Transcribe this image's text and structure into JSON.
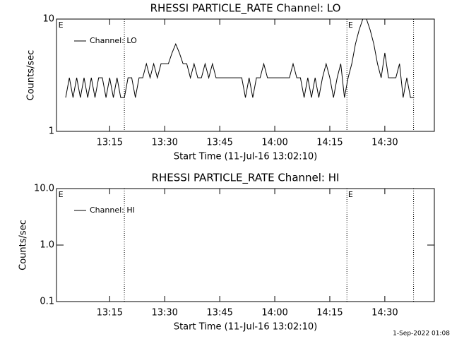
{
  "chart_data": [
    {
      "type": "line",
      "title": "RHESSI PARTICLE_RATE Channel: LO",
      "xlabel": "Start Time (11-Jul-16 13:02:10)",
      "ylabel": "Counts/sec",
      "log_y": true,
      "ylim": [
        1,
        10
      ],
      "yticks": [
        1,
        10
      ],
      "xlim": [
        "13:00:30",
        "14:43:30"
      ],
      "xticks": [
        "13:15",
        "13:30",
        "13:45",
        "14:00",
        "14:15",
        "14:30"
      ],
      "markers": [
        "13:19",
        "14:19:40",
        "14:37:50"
      ],
      "annotations": [
        {
          "text": "E",
          "x": "13:01"
        },
        {
          "text": "E",
          "x": "14:20"
        }
      ],
      "series": [
        {
          "name": "Channel: LO",
          "color": "#000000",
          "x": [
            "13:03",
            "13:04",
            "13:05",
            "13:06",
            "13:07",
            "13:08",
            "13:09",
            "13:10",
            "13:11",
            "13:12",
            "13:13",
            "13:14",
            "13:15",
            "13:16",
            "13:17",
            "13:18",
            "13:19",
            "13:20",
            "13:21",
            "13:22",
            "13:23",
            "13:24",
            "13:25",
            "13:26",
            "13:27",
            "13:28",
            "13:29",
            "13:30",
            "13:31",
            "13:32",
            "13:33",
            "13:34",
            "13:35",
            "13:36",
            "13:37",
            "13:38",
            "13:39",
            "13:40",
            "13:41",
            "13:42",
            "13:43",
            "13:44",
            "13:45",
            "13:46",
            "13:47",
            "13:48",
            "13:49",
            "13:50",
            "13:51",
            "13:52",
            "13:53",
            "13:54",
            "13:55",
            "13:56",
            "13:57",
            "13:58",
            "13:59",
            "14:00",
            "14:01",
            "14:02",
            "14:03",
            "14:04",
            "14:05",
            "14:06",
            "14:07",
            "14:08",
            "14:09",
            "14:10",
            "14:11",
            "14:12",
            "14:13",
            "14:14",
            "14:15",
            "14:16",
            "14:17",
            "14:18",
            "14:19",
            "14:20",
            "14:21",
            "14:22",
            "14:23",
            "14:24",
            "14:25",
            "14:26",
            "14:27",
            "14:28",
            "14:29",
            "14:30",
            "14:31",
            "14:32",
            "14:33",
            "14:34",
            "14:35",
            "14:36",
            "14:37",
            "14:38"
          ],
          "values": [
            2,
            3,
            2,
            3,
            2,
            3,
            2,
            3,
            2,
            3,
            3,
            2,
            3,
            2,
            3,
            2,
            2,
            3,
            3,
            2,
            3,
            3,
            4,
            3,
            4,
            3,
            4,
            4,
            4,
            5,
            6,
            5,
            4,
            4,
            3,
            4,
            3,
            3,
            4,
            3,
            4,
            3,
            3,
            3,
            3,
            3,
            3,
            3,
            3,
            2,
            3,
            2,
            3,
            3,
            4,
            3,
            3,
            3,
            3,
            3,
            3,
            3,
            4,
            3,
            3,
            2,
            3,
            2,
            3,
            2,
            3,
            4,
            3,
            2,
            3,
            4,
            2,
            3,
            4,
            6,
            8,
            10,
            10,
            8,
            6,
            4,
            3,
            5,
            3,
            3,
            3,
            4,
            2,
            3,
            2,
            2
          ]
        }
      ]
    },
    {
      "type": "line",
      "title": "RHESSI PARTICLE_RATE Channel: HI",
      "xlabel": "Start Time (11-Jul-16 13:02:10)",
      "ylabel": "Counts/sec",
      "log_y": true,
      "ylim": [
        0.1,
        10
      ],
      "yticks": [
        0.1,
        {
          "value": 1,
          "label": "1.0"
        },
        {
          "value": 10,
          "label": "10.0"
        }
      ],
      "xlim": [
        "13:00:30",
        "14:43:30"
      ],
      "xticks": [
        "13:15",
        "13:30",
        "13:45",
        "14:00",
        "14:15",
        "14:30"
      ],
      "markers": [
        "13:19",
        "14:19:40",
        "14:37:50"
      ],
      "annotations": [
        {
          "text": "E",
          "x": "13:01"
        },
        {
          "text": "E",
          "x": "14:20"
        }
      ],
      "series": [
        {
          "name": "Channel: HI",
          "color": "#000000",
          "x": [],
          "values": []
        }
      ]
    }
  ],
  "footer": "1-Sep-2022 01:08"
}
